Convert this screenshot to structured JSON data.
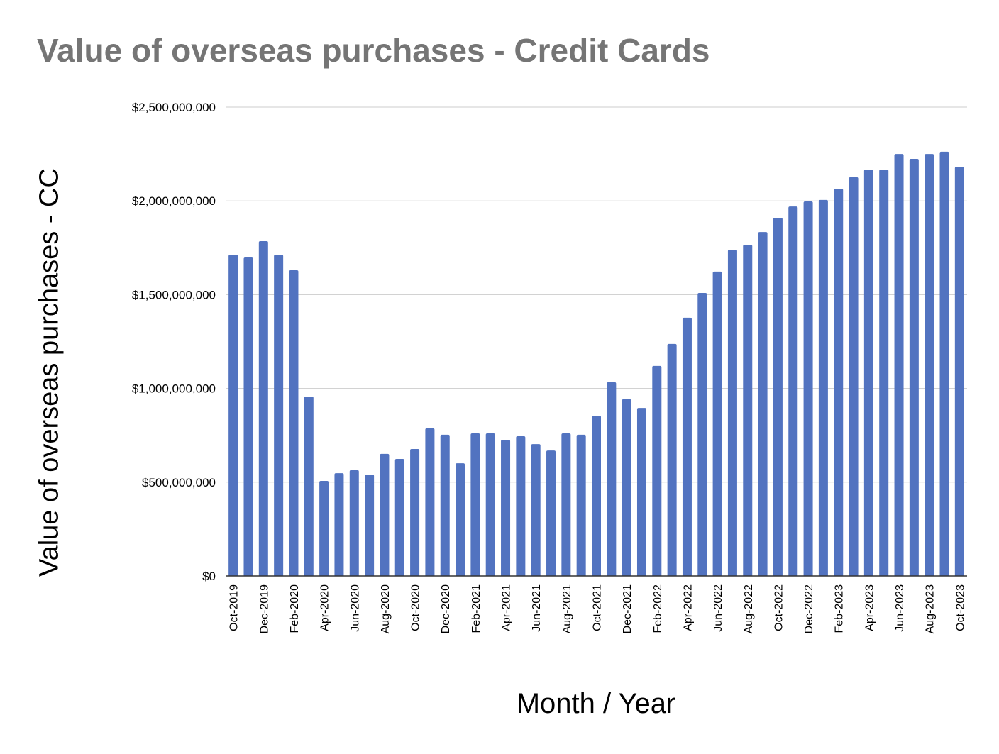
{
  "chart_data": {
    "type": "bar",
    "title": "Value of overseas purchases - Credit Cards",
    "xlabel": "Month / Year",
    "ylabel": "Value of overseas purchases - CC",
    "ylim": [
      0,
      2500000000
    ],
    "yticks": [
      0,
      500000000,
      1000000000,
      1500000000,
      2000000000,
      2500000000
    ],
    "ytick_labels": [
      "$0",
      "$500,000,000",
      "$1,000,000,000",
      "$1,500,000,000",
      "$2,000,000,000",
      "$2,500,000,000"
    ],
    "grid": true,
    "bar_color": "#5273c0",
    "categories": [
      "Oct-2019",
      "Nov-2019",
      "Dec-2019",
      "Jan-2020",
      "Feb-2020",
      "Mar-2020",
      "Apr-2020",
      "May-2020",
      "Jun-2020",
      "Jul-2020",
      "Aug-2020",
      "Sep-2020",
      "Oct-2020",
      "Nov-2020",
      "Dec-2020",
      "Jan-2021",
      "Feb-2021",
      "Mar-2021",
      "Apr-2021",
      "May-2021",
      "Jun-2021",
      "Jul-2021",
      "Aug-2021",
      "Sep-2021",
      "Oct-2021",
      "Nov-2021",
      "Dec-2021",
      "Jan-2022",
      "Feb-2022",
      "Mar-2022",
      "Apr-2022",
      "May-2022",
      "Jun-2022",
      "Jul-2022",
      "Aug-2022",
      "Sep-2022",
      "Oct-2022",
      "Nov-2022",
      "Dec-2022",
      "Jan-2023",
      "Feb-2023",
      "Mar-2023",
      "Apr-2023",
      "May-2023",
      "Jun-2023",
      "Jul-2023",
      "Aug-2023",
      "Sep-2023",
      "Oct-2023"
    ],
    "values": [
      1713000000,
      1698000000,
      1785000000,
      1713000000,
      1630000000,
      957000000,
      507000000,
      548000000,
      564000000,
      541000000,
      651000000,
      624000000,
      677000000,
      787000000,
      753000000,
      601000000,
      760000000,
      760000000,
      726000000,
      745000000,
      703000000,
      669000000,
      760000000,
      753000000,
      855000000,
      1033000000,
      942000000,
      896000000,
      1120000000,
      1237000000,
      1377000000,
      1509000000,
      1623000000,
      1740000000,
      1766000000,
      1834000000,
      1910000000,
      1970000000,
      1997000000,
      2005000000,
      2065000000,
      2126000000,
      2167000000,
      2167000000,
      2250000000,
      2224000000,
      2250000000,
      2262000000,
      2182000000
    ],
    "x_label_every": 2
  }
}
